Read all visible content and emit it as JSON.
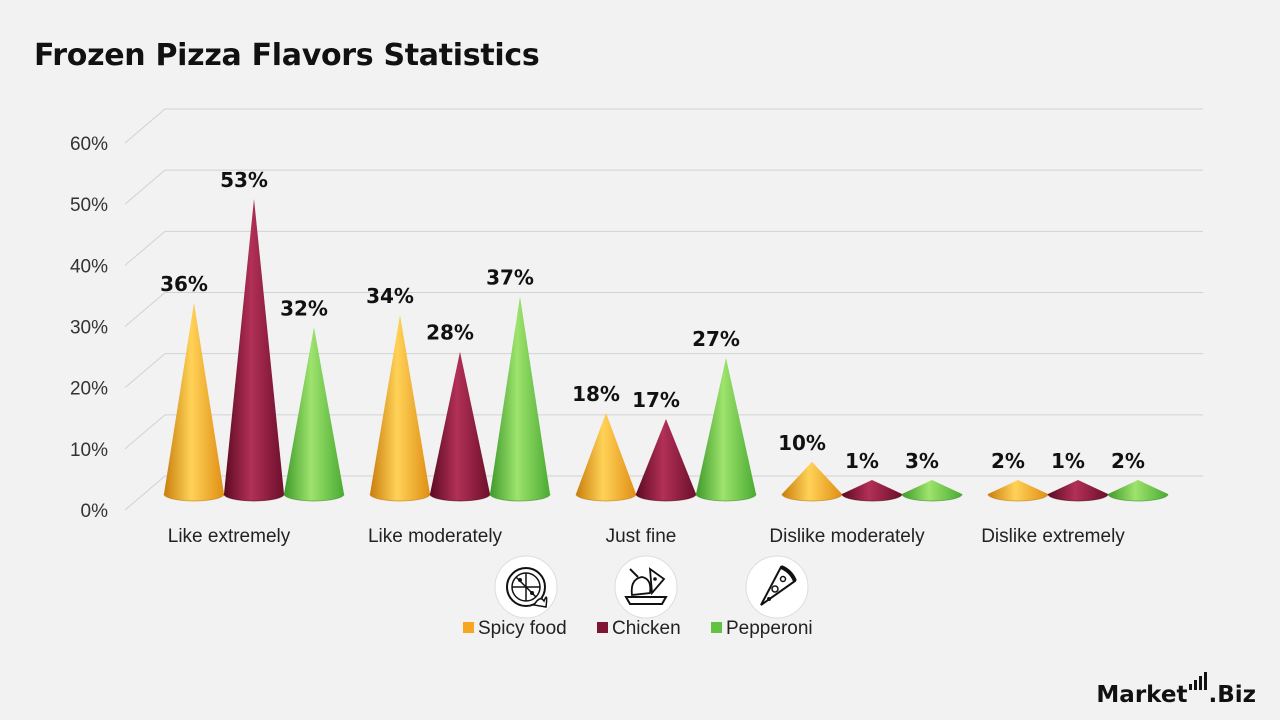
{
  "title": "Frozen Pizza Flavors Statistics",
  "brand": {
    "name_main": "Market",
    "name_suffix": ".Biz"
  },
  "colors": {
    "spicy": "#f6a623",
    "chicken": "#7f1434",
    "pepperoni": "#62c244"
  },
  "icons": [
    "pizza-fire-icon",
    "chicken-plate-icon",
    "pizza-slice-icon"
  ],
  "chart_data": {
    "type": "bar",
    "title": "Frozen Pizza Flavors Statistics",
    "categories": [
      "Like extremely",
      "Like moderately",
      "Just fine",
      "Dislike moderately",
      "Dislike extremely"
    ],
    "series": [
      {
        "name": "Spicy food",
        "values": [
          36,
          34,
          18,
          10,
          2
        ],
        "labels": [
          "36%",
          "34%",
          "18%",
          "10%",
          "2%"
        ]
      },
      {
        "name": "Chicken",
        "values": [
          53,
          28,
          17,
          1,
          1
        ],
        "labels": [
          "53%",
          "28%",
          "17%",
          "1%",
          "1%"
        ]
      },
      {
        "name": "Pepperoni",
        "values": [
          32,
          37,
          27,
          3,
          2
        ],
        "labels": [
          "32%",
          "37%",
          "27%",
          "3%",
          "2%"
        ]
      }
    ],
    "yticks": [
      "0%",
      "10%",
      "20%",
      "30%",
      "40%",
      "50%",
      "60%"
    ],
    "ylim": [
      0,
      60
    ],
    "xlabel": "",
    "ylabel": "",
    "grid": true,
    "legend": "bottom-center"
  }
}
